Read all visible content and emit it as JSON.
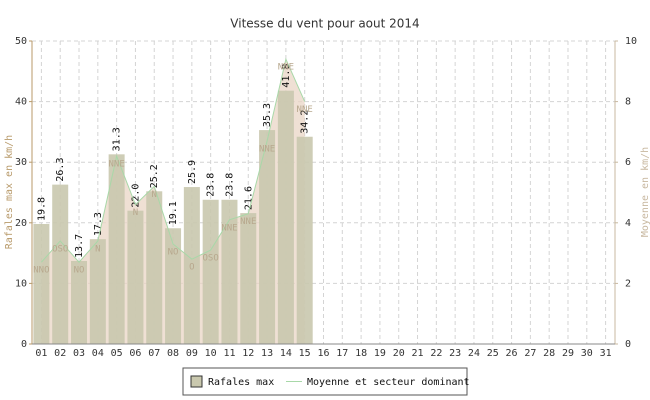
{
  "chart_data": {
    "type": "bar_line",
    "title": "Vitesse du vent pour aout 2014",
    "ylabel": "Rafales max en km/h",
    "y2label": "Moyenne en km/h",
    "categories": [
      "01",
      "02",
      "03",
      "04",
      "05",
      "06",
      "07",
      "08",
      "09",
      "10",
      "11",
      "12",
      "13",
      "14",
      "15",
      "16",
      "17",
      "18",
      "19",
      "20",
      "21",
      "22",
      "23",
      "24",
      "25",
      "26",
      "27",
      "28",
      "29",
      "30",
      "31"
    ],
    "series": [
      {
        "name": "Rafales max",
        "type": "bar",
        "color": "#c9c8ae",
        "values": [
          19.8,
          26.3,
          13.7,
          17.3,
          31.3,
          22.0,
          25.2,
          19.1,
          25.9,
          23.8,
          23.8,
          21.6,
          35.3,
          41.8,
          34.2,
          null,
          null,
          null,
          null,
          null,
          null,
          null,
          null,
          null,
          null,
          null,
          null,
          null,
          null,
          null,
          null
        ],
        "value_labels": [
          "19.8",
          "26.3",
          "13.7",
          "17.3",
          "31.3",
          "22.0",
          "25.2",
          "19.1",
          "25.9",
          "23.8",
          "23.8",
          "21.6",
          "35.3",
          "41.8",
          "34.2",
          null,
          null,
          null,
          null,
          null,
          null,
          null,
          null,
          null,
          null,
          null,
          null,
          null,
          null,
          null,
          null
        ]
      },
      {
        "name": "Moyenne et secteur dominant",
        "type": "line",
        "axis": "y2",
        "color": "#a8d8a8",
        "values": [
          2.7,
          3.4,
          2.7,
          3.4,
          6.2,
          4.6,
          5.2,
          3.3,
          2.8,
          3.1,
          4.1,
          4.3,
          6.7,
          9.4,
          8.0,
          null,
          null,
          null,
          null,
          null,
          null,
          null,
          null,
          null,
          null,
          null,
          null,
          null,
          null,
          null,
          null
        ],
        "sectors": [
          "NNO",
          "OSO",
          "NO",
          "N",
          "NNE",
          "N",
          "N",
          "NO",
          "O",
          "OSO",
          "NNE",
          "NNE",
          "NNE",
          "NNE",
          "NNE",
          null,
          null,
          null,
          null,
          null,
          null,
          null,
          null,
          null,
          null,
          null,
          null,
          null,
          null,
          null,
          null
        ]
      }
    ],
    "ylim": [
      0,
      50
    ],
    "yticks": [
      0,
      10,
      20,
      30,
      40,
      50
    ],
    "y2lim": [
      0,
      10
    ],
    "y2ticks": [
      0,
      2,
      4,
      6,
      8,
      10
    ],
    "grid": true
  }
}
